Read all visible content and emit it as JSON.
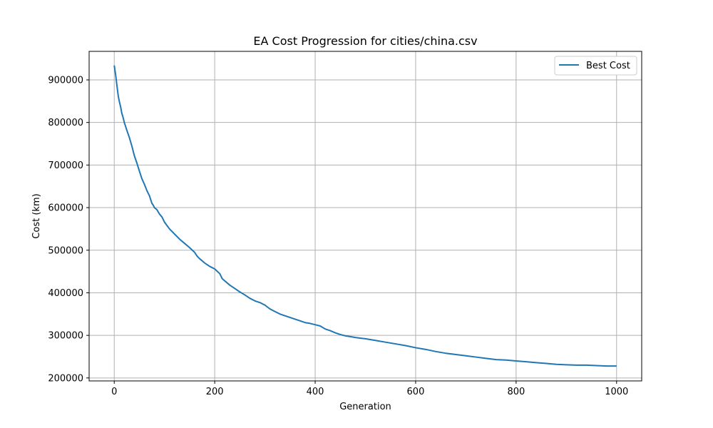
{
  "chart_data": {
    "type": "line",
    "title": "EA Cost Progression for cities/china.csv",
    "xlabel": "Generation",
    "ylabel": "Cost (km)",
    "xlim": [
      -50,
      1050
    ],
    "ylim": [
      193000,
      967000
    ],
    "xticks": [
      0,
      200,
      400,
      600,
      800,
      1000
    ],
    "xtick_labels": [
      "0",
      "200",
      "400",
      "600",
      "800",
      "1000"
    ],
    "yticks": [
      200000,
      300000,
      400000,
      500000,
      600000,
      700000,
      800000,
      900000
    ],
    "ytick_labels": [
      "200000",
      "300000",
      "400000",
      "500000",
      "600000",
      "700000",
      "800000",
      "900000"
    ],
    "grid": true,
    "legend": {
      "position": "top-right",
      "entries": [
        "Best Cost"
      ]
    },
    "series": [
      {
        "name": "Best Cost",
        "color": "#1f77b4",
        "x": [
          0,
          3,
          5,
          8,
          10,
          13,
          15,
          18,
          20,
          25,
          30,
          35,
          40,
          45,
          50,
          55,
          60,
          65,
          70,
          75,
          78,
          80,
          85,
          90,
          95,
          100,
          110,
          120,
          130,
          140,
          150,
          160,
          165,
          170,
          180,
          190,
          200,
          210,
          215,
          220,
          230,
          240,
          250,
          260,
          270,
          280,
          290,
          300,
          310,
          320,
          330,
          340,
          350,
          360,
          370,
          380,
          390,
          400,
          410,
          420,
          430,
          440,
          450,
          460,
          470,
          480,
          500,
          520,
          540,
          560,
          580,
          600,
          620,
          640,
          660,
          680,
          700,
          720,
          740,
          760,
          780,
          800,
          820,
          840,
          860,
          870,
          880,
          900,
          920,
          940,
          960,
          980,
          1000
        ],
        "y": [
          934000,
          910000,
          890000,
          862000,
          850000,
          835000,
          822000,
          810000,
          800000,
          782000,
          765000,
          745000,
          722000,
          705000,
          686000,
          668000,
          655000,
          640000,
          628000,
          610000,
          605000,
          600000,
          595000,
          585000,
          578000,
          566000,
          550000,
          538000,
          526000,
          516000,
          506000,
          495000,
          486000,
          480000,
          470000,
          462000,
          456000,
          445000,
          433000,
          428000,
          418000,
          410000,
          402000,
          395000,
          387000,
          381000,
          377000,
          371000,
          362000,
          356000,
          350000,
          346000,
          342000,
          338000,
          334000,
          330000,
          328000,
          325000,
          322000,
          315000,
          311000,
          306000,
          302000,
          299000,
          297000,
          295000,
          292000,
          288000,
          284000,
          280000,
          276000,
          271000,
          267000,
          262000,
          258000,
          255000,
          252000,
          249000,
          246000,
          243000,
          242000,
          240000,
          238000,
          236000,
          234000,
          233000,
          232000,
          231000,
          230000,
          230000,
          229000,
          228000,
          228000
        ]
      }
    ]
  }
}
